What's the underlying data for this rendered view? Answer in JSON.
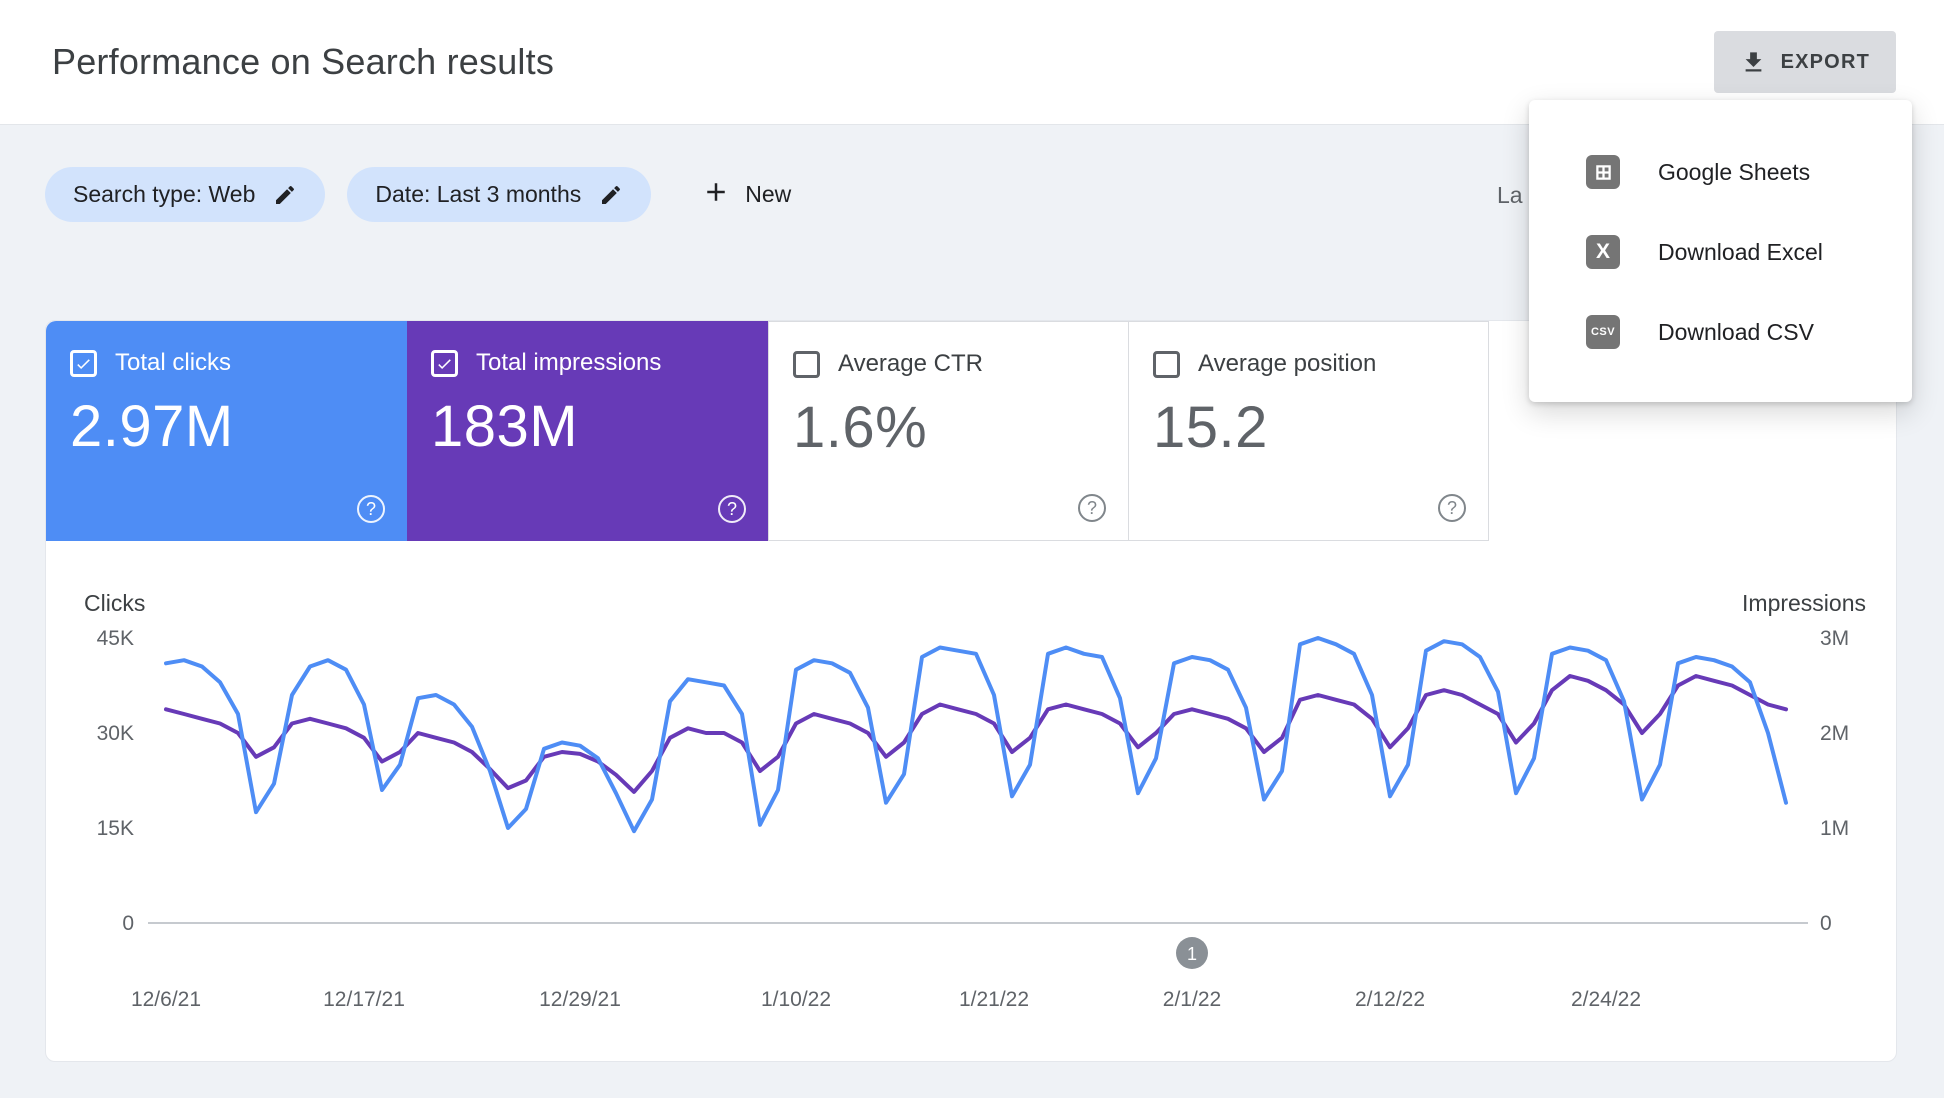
{
  "header": {
    "title": "Performance on Search results",
    "export_label": "EXPORT"
  },
  "filters": {
    "search_type": "Search type: Web",
    "date": "Date: Last 3 months",
    "new_label": "New",
    "clipped_text": "La"
  },
  "export_menu": {
    "items": [
      {
        "label": "Google Sheets",
        "icon": "google-sheets-icon"
      },
      {
        "label": "Download Excel",
        "icon": "excel-icon"
      },
      {
        "label": "Download CSV",
        "icon": "csv-icon"
      }
    ]
  },
  "metrics": [
    {
      "label": "Total clicks",
      "value": "2.97M",
      "selected": true,
      "color": "#4e8df5"
    },
    {
      "label": "Total impressions",
      "value": "183M",
      "selected": true,
      "color": "#673ab7"
    },
    {
      "label": "Average CTR",
      "value": "1.6%",
      "selected": false
    },
    {
      "label": "Average position",
      "value": "15.2",
      "selected": false
    }
  ],
  "chart_data": {
    "type": "line",
    "left_axis": {
      "label": "Clicks",
      "ticks": [
        "45K",
        "30K",
        "15K",
        "0"
      ],
      "max": 45,
      "unit": "thousands"
    },
    "right_axis": {
      "label": "Impressions",
      "ticks": [
        "3M",
        "2M",
        "1M",
        "0"
      ],
      "max": 3,
      "unit": "millions"
    },
    "grid": false,
    "x_ticks": [
      {
        "label": "12/6/21",
        "day": 0
      },
      {
        "label": "12/17/21",
        "day": 11
      },
      {
        "label": "12/29/21",
        "day": 23
      },
      {
        "label": "1/10/22",
        "day": 35
      },
      {
        "label": "1/21/22",
        "day": 46
      },
      {
        "label": "2/1/22",
        "day": 57
      },
      {
        "label": "2/12/22",
        "day": 68
      },
      {
        "label": "2/24/22",
        "day": 80
      }
    ],
    "series": [
      {
        "name": "Clicks",
        "axis": "left",
        "unit": "thousands",
        "color": "#4e8df5",
        "values": [
          41,
          41.5,
          40.5,
          38,
          33,
          17.5,
          22,
          36,
          40.5,
          41.5,
          40,
          34.5,
          21,
          25,
          35.5,
          36,
          34.5,
          31,
          24,
          15,
          18,
          27.5,
          28.5,
          28,
          26,
          20.5,
          14.5,
          19.5,
          35,
          38.5,
          38,
          37.5,
          33,
          15.5,
          21,
          40,
          41.5,
          41,
          39.5,
          34,
          19,
          23.5,
          42,
          43.5,
          43,
          42.5,
          36,
          20,
          25,
          42.5,
          43.5,
          42.5,
          42,
          35.5,
          20.5,
          26,
          41,
          42,
          41.5,
          40,
          34,
          19.5,
          24,
          44,
          45,
          44,
          42.5,
          36,
          20,
          25,
          43,
          44.5,
          44,
          42,
          36.5,
          20.5,
          26,
          42.5,
          43.5,
          43,
          41.5,
          35,
          19.5,
          25,
          41,
          42,
          41.5,
          40.5,
          38,
          30,
          19
        ]
      },
      {
        "name": "Impressions",
        "axis": "right",
        "unit": "millions",
        "color": "#673ab7",
        "values": [
          2.25,
          2.2,
          2.15,
          2.1,
          2.0,
          1.75,
          1.85,
          2.1,
          2.15,
          2.1,
          2.05,
          1.95,
          1.7,
          1.8,
          2.0,
          1.95,
          1.9,
          1.8,
          1.62,
          1.42,
          1.5,
          1.75,
          1.8,
          1.78,
          1.7,
          1.56,
          1.38,
          1.6,
          1.95,
          2.05,
          2.0,
          2.0,
          1.9,
          1.6,
          1.75,
          2.1,
          2.2,
          2.15,
          2.1,
          2.0,
          1.75,
          1.9,
          2.2,
          2.3,
          2.25,
          2.2,
          2.1,
          1.8,
          1.95,
          2.25,
          2.3,
          2.25,
          2.2,
          2.1,
          1.85,
          2.0,
          2.2,
          2.25,
          2.2,
          2.15,
          2.05,
          1.8,
          1.95,
          2.35,
          2.4,
          2.35,
          2.3,
          2.15,
          1.85,
          2.05,
          2.4,
          2.45,
          2.4,
          2.3,
          2.2,
          1.9,
          2.1,
          2.45,
          2.6,
          2.55,
          2.45,
          2.3,
          2.0,
          2.2,
          2.5,
          2.6,
          2.55,
          2.5,
          2.4,
          2.3,
          2.25
        ]
      }
    ],
    "annotation": {
      "label": "1",
      "day": 57,
      "color": "#8a9096"
    }
  }
}
